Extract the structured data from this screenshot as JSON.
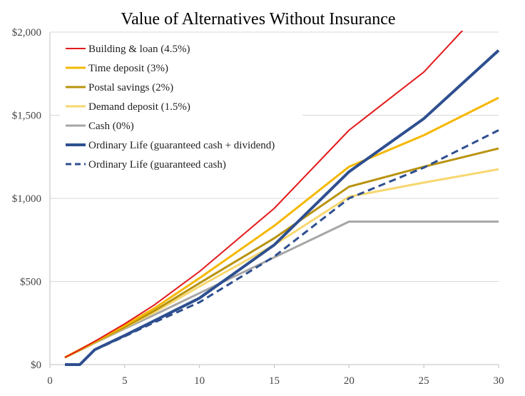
{
  "chart_data": {
    "type": "line",
    "title": "Value of Alternatives Without Insurance",
    "xlabel": "",
    "ylabel": "",
    "xlim": [
      0,
      30
    ],
    "ylim": [
      0,
      2000
    ],
    "x_ticks": [
      0,
      5,
      10,
      15,
      20,
      25,
      30
    ],
    "x_tick_labels": [
      "0",
      "5",
      "10",
      "15",
      "20",
      "25",
      "30"
    ],
    "y_ticks": [
      0,
      500,
      1000,
      1500,
      2000
    ],
    "y_tick_labels": [
      "$0",
      "$500",
      "$1,000",
      "$1,500",
      "$2,000"
    ],
    "grid": "horizontal",
    "legend_position": "top-left",
    "series": [
      {
        "name": "Building & loan (4.5%)",
        "color": "#e31a1c",
        "style": "solid",
        "width": 2,
        "points": [
          [
            1,
            43
          ],
          [
            2,
            90
          ],
          [
            3,
            140
          ],
          [
            5,
            245
          ],
          [
            7,
            360
          ],
          [
            10,
            560
          ],
          [
            15,
            940
          ],
          [
            20,
            1410
          ],
          [
            25,
            1760
          ],
          [
            28,
            2050
          ]
        ]
      },
      {
        "name": "Time deposit (3%)",
        "color": "#f5b800",
        "style": "solid",
        "width": 3,
        "points": [
          [
            1,
            43
          ],
          [
            2,
            90
          ],
          [
            3,
            138
          ],
          [
            5,
            235
          ],
          [
            7,
            340
          ],
          [
            10,
            520
          ],
          [
            15,
            835
          ],
          [
            20,
            1190
          ],
          [
            25,
            1380
          ],
          [
            30,
            1605
          ]
        ]
      },
      {
        "name": "Postal savings (2%)",
        "color": "#b8930e",
        "style": "solid",
        "width": 3,
        "points": [
          [
            1,
            43
          ],
          [
            2,
            88
          ],
          [
            3,
            135
          ],
          [
            5,
            225
          ],
          [
            7,
            325
          ],
          [
            10,
            490
          ],
          [
            15,
            760
          ],
          [
            20,
            1070
          ],
          [
            25,
            1190
          ],
          [
            30,
            1300
          ]
        ]
      },
      {
        "name": "Demand deposit (1.5%)",
        "color": "#f7d76f",
        "style": "solid",
        "width": 3,
        "points": [
          [
            1,
            43
          ],
          [
            2,
            87
          ],
          [
            3,
            132
          ],
          [
            5,
            222
          ],
          [
            7,
            315
          ],
          [
            10,
            470
          ],
          [
            15,
            720
          ],
          [
            20,
            1010
          ],
          [
            25,
            1095
          ],
          [
            30,
            1175
          ]
        ]
      },
      {
        "name": "Cash (0%)",
        "color": "#a6a6a6",
        "style": "solid",
        "width": 3,
        "points": [
          [
            1,
            43
          ],
          [
            2,
            86
          ],
          [
            3,
            130
          ],
          [
            5,
            216
          ],
          [
            7,
            300
          ],
          [
            10,
            430
          ],
          [
            15,
            645
          ],
          [
            20,
            860
          ],
          [
            25,
            860
          ],
          [
            30,
            860
          ]
        ]
      },
      {
        "name": "Ordinary Life (guaranteed cash + dividend)",
        "color": "#2e4f8f",
        "style": "solid",
        "width": 4,
        "points": [
          [
            1,
            0
          ],
          [
            2,
            0
          ],
          [
            3,
            90
          ],
          [
            5,
            175
          ],
          [
            7,
            265
          ],
          [
            10,
            400
          ],
          [
            15,
            720
          ],
          [
            20,
            1160
          ],
          [
            25,
            1480
          ],
          [
            30,
            1890
          ]
        ]
      },
      {
        "name": "Ordinary Life (guaranteed cash)",
        "color": "#2e4f8f",
        "style": "dashed",
        "width": 3,
        "points": [
          [
            1,
            0
          ],
          [
            2,
            0
          ],
          [
            3,
            88
          ],
          [
            5,
            170
          ],
          [
            7,
            255
          ],
          [
            10,
            375
          ],
          [
            15,
            650
          ],
          [
            20,
            1000
          ],
          [
            25,
            1185
          ],
          [
            30,
            1410
          ]
        ]
      }
    ]
  }
}
